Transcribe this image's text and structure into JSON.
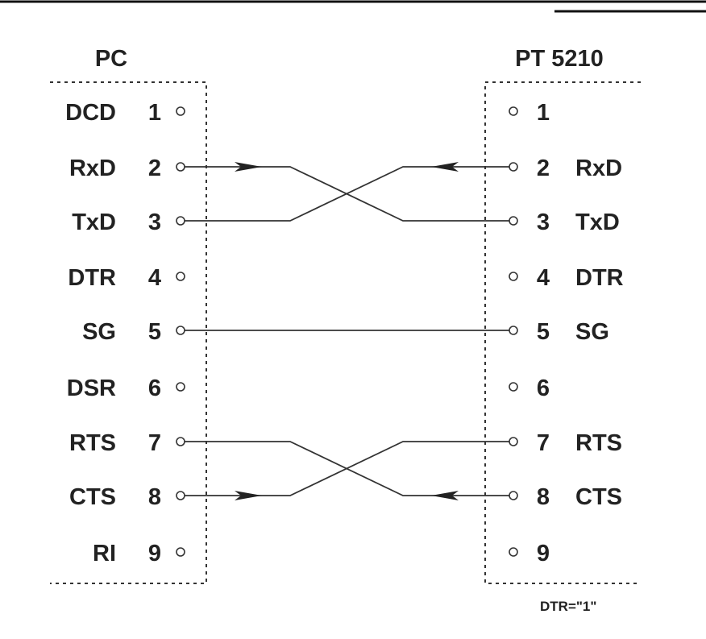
{
  "left_connector": {
    "title": "PC",
    "pins": [
      {
        "num": "1",
        "signal": "DCD"
      },
      {
        "num": "2",
        "signal": "RxD"
      },
      {
        "num": "3",
        "signal": "TxD"
      },
      {
        "num": "4",
        "signal": "DTR"
      },
      {
        "num": "5",
        "signal": "SG"
      },
      {
        "num": "6",
        "signal": "DSR"
      },
      {
        "num": "7",
        "signal": "RTS"
      },
      {
        "num": "8",
        "signal": "CTS"
      },
      {
        "num": "9",
        "signal": "RI"
      }
    ]
  },
  "right_connector": {
    "title": "PT 5210",
    "pins": [
      {
        "num": "1",
        "signal": ""
      },
      {
        "num": "2",
        "signal": "RxD"
      },
      {
        "num": "3",
        "signal": "TxD"
      },
      {
        "num": "4",
        "signal": "DTR"
      },
      {
        "num": "5",
        "signal": "SG"
      },
      {
        "num": "6",
        "signal": ""
      },
      {
        "num": "7",
        "signal": "RTS"
      },
      {
        "num": "8",
        "signal": "CTS"
      },
      {
        "num": "9",
        "signal": ""
      }
    ]
  },
  "connections": [
    {
      "from": "2",
      "to": "3",
      "arrow": "right"
    },
    {
      "from": "3",
      "to": "2",
      "arrow": "left"
    },
    {
      "from": "5",
      "to": "5",
      "arrow": "none"
    },
    {
      "from": "7",
      "to": "8",
      "arrow": "left"
    },
    {
      "from": "8",
      "to": "7",
      "arrow": "right"
    }
  ],
  "note": "DTR=\"1\""
}
